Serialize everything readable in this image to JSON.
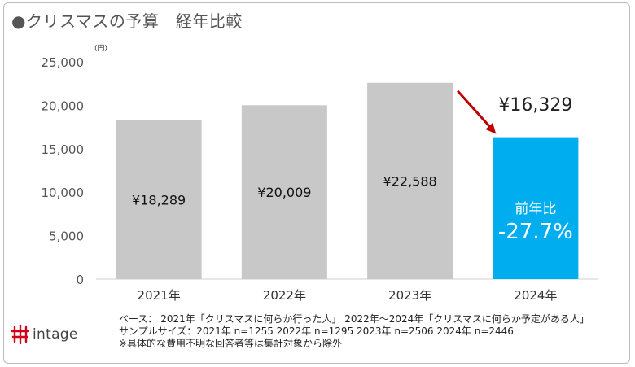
{
  "header": {
    "title": "●クリスマスの予算　経年比較"
  },
  "footnotes": [
    "ベース：  2021年「クリスマスに何らか行った人」 2022年～2024年「クリスマスに何らか予定がある人」",
    "サンプルサイズ：2021年 n=1255  2022年 n=1295  2023年 n=2506  2024年 n=2446",
    "※具体的な費用不明な回答者等は集計対象から除外"
  ],
  "logo": {
    "text": "intage"
  },
  "chart_data": {
    "type": "bar",
    "title": "●クリスマスの予算　経年比較",
    "unit_label": "(円)",
    "categories": [
      "2021年",
      "2022年",
      "2023年",
      "2024年"
    ],
    "values": [
      18289,
      20009,
      22588,
      16329
    ],
    "value_labels": [
      "¥18,289",
      "¥20,009",
      "¥22,588",
      "¥16,329"
    ],
    "ylim": [
      0,
      25000
    ],
    "yticks": [
      0,
      5000,
      10000,
      15000,
      20000,
      25000
    ],
    "ytick_labels": [
      "0",
      "5,000",
      "10,000",
      "15,000",
      "20,000",
      "25,000"
    ],
    "grid": false,
    "bar_color": "#c8c8c8",
    "highlight_color": "#00aeef",
    "highlight_index": 3,
    "highlight_annotation": {
      "label": "前年比",
      "value": "-27.7%",
      "arrow_color": "#c00000"
    }
  }
}
